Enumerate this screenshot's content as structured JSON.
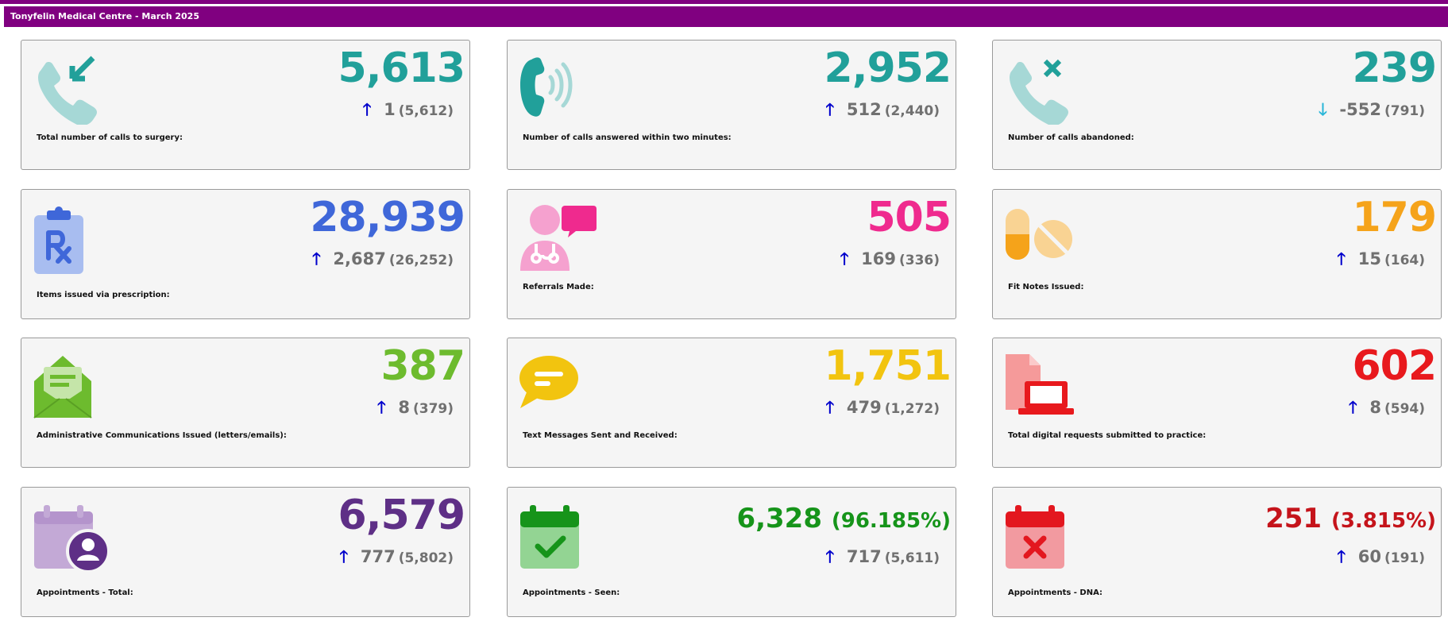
{
  "header": {
    "title": "Tonyfelin Medical Centre - March 2025"
  },
  "colors": {
    "banner": "#800080",
    "up_arrow": "#0000cc",
    "down_arrow": "#29b6d8",
    "delta_text": "#707070"
  },
  "cards": [
    {
      "value": "5,613",
      "change": "1",
      "previous": "(5,612)",
      "direction": "up",
      "label": "Total number of calls to surgery:",
      "color": "#21a09a",
      "icon": "incoming-call-icon"
    },
    {
      "value": "2,952",
      "change": "512",
      "previous": "(2,440)",
      "direction": "up",
      "label": "Number of calls answered within two minutes:",
      "color": "#21a09a",
      "icon": "phone-ringing-icon"
    },
    {
      "value": "239",
      "change": "-552",
      "previous": "(791)",
      "direction": "down",
      "label": "Number of calls abandoned:",
      "color": "#21a09a",
      "icon": "missed-call-icon"
    },
    {
      "value": "28,939",
      "change": "2,687",
      "previous": "(26,252)",
      "direction": "up",
      "label": "Items issued via prescription:",
      "color": "#3f67d9",
      "icon": "prescription-clipboard-icon"
    },
    {
      "value": "505",
      "change": "169",
      "previous": "(336)",
      "direction": "up",
      "label": "Referrals Made:",
      "color": "#ef2a8e",
      "icon": "doctor-referral-icon"
    },
    {
      "value": "179",
      "change": "15",
      "previous": "(164)",
      "direction": "up",
      "label": "Fit Notes Issued:",
      "color": "#f5a31a",
      "icon": "pills-icon"
    },
    {
      "value": "387",
      "change": "8",
      "previous": "(379)",
      "direction": "up",
      "label": "Administrative Communications Issued (letters/emails):",
      "color": "#6dbb2e",
      "icon": "open-envelope-icon"
    },
    {
      "value": "1,751",
      "change": "479",
      "previous": "(1,272)",
      "direction": "up",
      "label": "Text Messages Sent and Received:",
      "color": "#f2c40f",
      "icon": "chat-bubble-icon"
    },
    {
      "value": "602",
      "change": "8",
      "previous": "(594)",
      "direction": "up",
      "label": "Total digital requests submitted to practice:",
      "color": "#e8191d",
      "icon": "digital-request-laptop-icon"
    },
    {
      "value": "6,579",
      "change": "777",
      "previous": "(5,802)",
      "direction": "up",
      "label": "Appointments - Total:",
      "color": "#5e2f86",
      "icon": "calendar-user-icon"
    },
    {
      "value": "6,328",
      "pct": "(96.185%)",
      "change": "717",
      "previous": "(5,611)",
      "direction": "up",
      "label": "Appointments - Seen:",
      "color": "#16941a",
      "icon": "calendar-check-icon"
    },
    {
      "value": "251",
      "pct": "(3.815%)",
      "change": "60",
      "previous": "(191)",
      "direction": "up",
      "label": "Appointments - DNA:",
      "color": "#c5141b",
      "icon": "calendar-cross-icon"
    }
  ]
}
